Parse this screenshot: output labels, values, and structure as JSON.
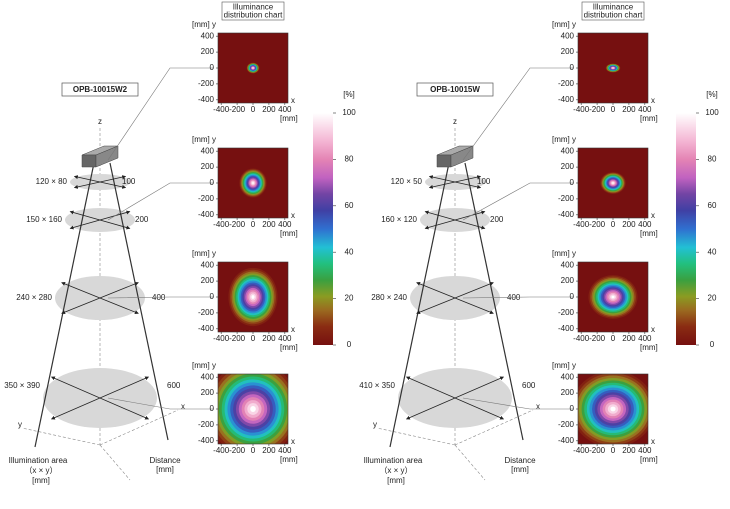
{
  "panels": [
    {
      "model": "OPB-10015W2",
      "areas": [
        {
          "size": "120 × 80",
          "distance": "100"
        },
        {
          "size": "150 × 160",
          "distance": "200"
        },
        {
          "size": "240 × 280",
          "distance": "400"
        },
        {
          "size": "350 × 390",
          "distance": "600"
        }
      ]
    },
    {
      "model": "OPB-10015W",
      "areas": [
        {
          "size": "120 × 50",
          "distance": "100"
        },
        {
          "size": "160 × 120",
          "distance": "200"
        },
        {
          "size": "280 × 240",
          "distance": "400"
        },
        {
          "size": "410 × 350",
          "distance": "600"
        }
      ]
    }
  ],
  "chart_title": "Illuminance distribution chart",
  "heatmap_axes": {
    "y_label": "[mm] y",
    "x_label": "x",
    "x_unit": "[mm]",
    "ticks": [
      -400,
      -200,
      0,
      200,
      400
    ]
  },
  "colorbar": {
    "unit": "[%]",
    "ticks": [
      0,
      20,
      40,
      60,
      80,
      100
    ]
  },
  "axes_3d": {
    "z": "z",
    "x": "x",
    "y": "y"
  },
  "illumination_area": [
    "Illumination area",
    "（x × y）",
    "[mm]"
  ],
  "distance": [
    "Distance",
    "[mm]"
  ]
}
